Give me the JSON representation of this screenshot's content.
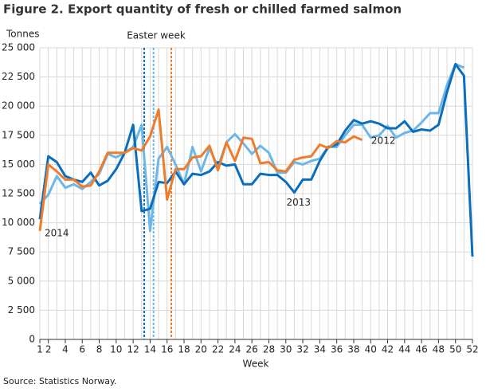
{
  "chart_data": {
    "type": "line",
    "title": "Figure 2. Export quantity of fresh or chilled farmed salmon",
    "y_label": "Tonnes",
    "x_label": "Week",
    "source": "Source: Statistics Norway.",
    "annotation": {
      "text": "Easter week",
      "lines": [
        {
          "x": 13.3,
          "color": "#0a6ebd"
        },
        {
          "x": 14.4,
          "color": "#6cb7e6"
        },
        {
          "x": 16.5,
          "color": "#f07b2b"
        }
      ]
    },
    "x": [
      1,
      2,
      3,
      4,
      5,
      6,
      7,
      8,
      9,
      10,
      11,
      12,
      13,
      14,
      15,
      16,
      17,
      18,
      19,
      20,
      21,
      22,
      23,
      24,
      25,
      26,
      27,
      28,
      29,
      30,
      31,
      32,
      33,
      34,
      35,
      36,
      37,
      38,
      39,
      40,
      41,
      42,
      43,
      44,
      45,
      46,
      47,
      48,
      49,
      50,
      51,
      52
    ],
    "xlim": [
      1,
      52
    ],
    "xticks": [
      1,
      2,
      4,
      6,
      8,
      10,
      12,
      14,
      16,
      18,
      20,
      22,
      24,
      26,
      28,
      30,
      32,
      34,
      36,
      38,
      40,
      42,
      44,
      46,
      48,
      50,
      52
    ],
    "ylim": [
      0,
      25000
    ],
    "yticks": [
      0,
      {
        "value": 2500,
        "label": "2 500"
      },
      {
        "value": 5000,
        "label": "5 000"
      },
      {
        "value": 7500,
        "label": "7 500"
      },
      {
        "value": 10000,
        "label": "10 000"
      },
      {
        "value": 12500,
        "label": "12 500"
      },
      {
        "value": 15000,
        "label": "15 000"
      },
      {
        "value": 17500,
        "label": "17 500"
      },
      {
        "value": 20000,
        "label": "20 000"
      },
      {
        "value": 22500,
        "label": "22 500"
      },
      {
        "value": 25000,
        "label": "25 000"
      }
    ],
    "grid": true,
    "series": [
      {
        "name": "2012",
        "color": "#6cb7e6",
        "values": [
          11600,
          12400,
          14000,
          13000,
          13300,
          12900,
          13500,
          14200,
          15900,
          15600,
          16000,
          16500,
          18400,
          9300,
          15500,
          16500,
          15000,
          13300,
          16500,
          14400,
          16400,
          14800,
          16900,
          17600,
          16800,
          15900,
          16600,
          16000,
          14300,
          14300,
          15200,
          15000,
          15300,
          15500,
          16500,
          16500,
          17500,
          18400,
          18400,
          17300,
          17500,
          18300,
          17300,
          17700,
          17900,
          18600,
          19400,
          19400,
          21800,
          23600,
          23300,
          null
        ]
      },
      {
        "name": "2013",
        "color": "#0a6ebd",
        "values": [
          10300,
          15700,
          15200,
          14000,
          13700,
          13500,
          14300,
          13200,
          13600,
          14600,
          16000,
          18400,
          11000,
          11200,
          13500,
          13400,
          14400,
          13300,
          14200,
          14100,
          14400,
          15200,
          14900,
          15000,
          13300,
          13300,
          14200,
          14100,
          14100,
          13500,
          12600,
          13700,
          13700,
          15300,
          16500,
          16700,
          17900,
          18800,
          18500,
          18700,
          18500,
          18100,
          18100,
          18700,
          17800,
          18000,
          17900,
          18400,
          21200,
          23600,
          22600,
          7100
        ]
      },
      {
        "name": "2014",
        "color": "#f07b2b",
        "values": [
          9300,
          15000,
          14400,
          13700,
          13700,
          13100,
          13200,
          14400,
          16000,
          16000,
          16000,
          16400,
          16200,
          17400,
          19700,
          12000,
          14600,
          14600,
          15600,
          15700,
          16600,
          14500,
          16900,
          15300,
          17300,
          17200,
          15100,
          15200,
          14500,
          14400,
          15400,
          15600,
          15700,
          16700,
          16400,
          17000,
          16900,
          17400,
          17100,
          null,
          null,
          null,
          null,
          null,
          null,
          null,
          null,
          null,
          null,
          null,
          null,
          null
        ]
      }
    ]
  }
}
